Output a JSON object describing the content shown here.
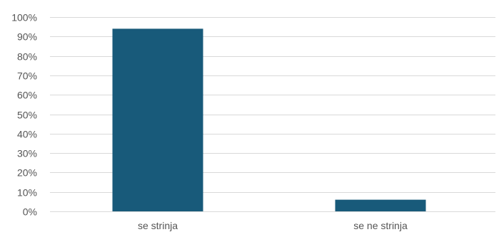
{
  "chart_data": {
    "type": "bar",
    "categories": [
      "se strinja",
      "se ne strinja"
    ],
    "values": [
      94,
      6
    ],
    "ylim": [
      0,
      100
    ],
    "yticks": [
      "0%",
      "10%",
      "20%",
      "30%",
      "40%",
      "50%",
      "60%",
      "70%",
      "80%",
      "90%",
      "100%"
    ],
    "grid": true,
    "bar_color": "#185a7a",
    "grid_color": "#d9d9d9",
    "label_color": "#555555",
    "title": "",
    "xlabel": "",
    "ylabel": ""
  }
}
